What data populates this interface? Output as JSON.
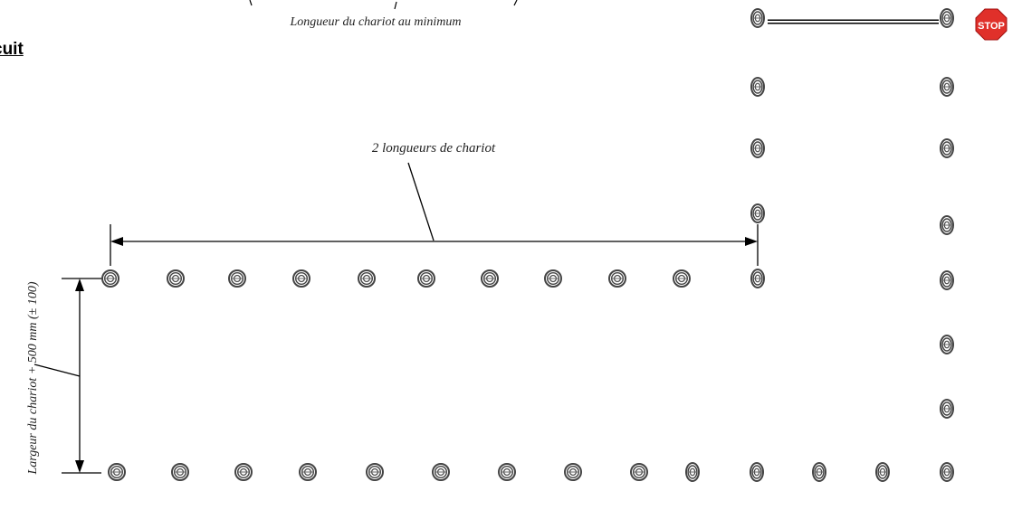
{
  "heading": "cuit",
  "labels": {
    "min_length": "Longueur du chariot au minimum",
    "two_lengths": "2 longueurs de chariot",
    "width": "Largeur du chariot  + 500  mm (± 100)"
  },
  "stop_sign": "STOP",
  "colors": {
    "line": "#000000",
    "cone_outer": "#444444",
    "stop_red": "#e0302a"
  }
}
